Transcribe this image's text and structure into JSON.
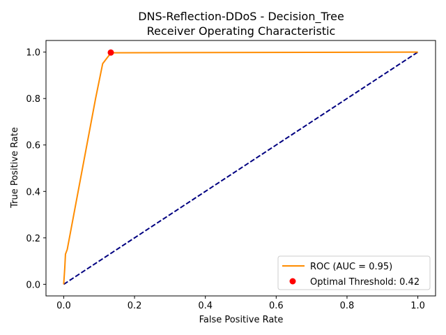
{
  "chart_data": {
    "type": "line",
    "title": "DNS-Reflection-DDoS - Decision_Tree",
    "subtitle": "Receiver Operating Characteristic",
    "xlabel": "False Positive Rate",
    "ylabel": "True Positive Rate",
    "xlim": [
      -0.05,
      1.05
    ],
    "ylim": [
      -0.05,
      1.05
    ],
    "xticks": [
      0.0,
      0.2,
      0.4,
      0.6,
      0.8,
      1.0
    ],
    "yticks": [
      0.0,
      0.2,
      0.4,
      0.6,
      0.8,
      1.0
    ],
    "xtick_labels": [
      "0.0",
      "0.2",
      "0.4",
      "0.6",
      "0.8",
      "1.0"
    ],
    "ytick_labels": [
      "0.0",
      "0.2",
      "0.4",
      "0.6",
      "0.8",
      "1.0"
    ],
    "grid": false,
    "legend_position": "bottom-right",
    "series": [
      {
        "name": "ROC (AUC = 0.95)",
        "color": "#ff8c00",
        "style": "solid",
        "x": [
          0.0,
          0.003,
          0.005,
          0.01,
          0.09,
          0.11,
          0.13,
          0.14,
          1.0
        ],
        "y": [
          0.0,
          0.07,
          0.13,
          0.15,
          0.8,
          0.95,
          0.99,
          0.997,
          1.0
        ]
      },
      {
        "name": "",
        "color": "#000080",
        "style": "dashed",
        "x": [
          0.0,
          1.0
        ],
        "y": [
          0.0,
          1.0
        ]
      }
    ],
    "points": [
      {
        "name": "Optimal Threshold: 0.42",
        "color": "#ff0000",
        "x": 0.133,
        "y": 0.998
      }
    ]
  }
}
